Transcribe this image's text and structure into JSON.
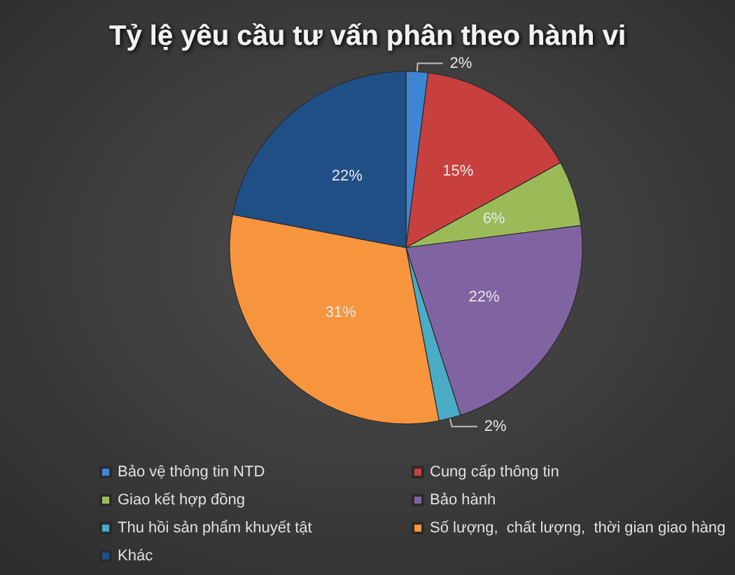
{
  "chart_data": {
    "type": "pie",
    "title": "Tỷ lệ yêu cầu tư vấn phân theo hành vi",
    "categories": [
      "Bảo vệ thông tin NTD",
      "Cung cấp thông tin",
      "Giao kết hợp đồng",
      "Bảo hành",
      "Thu hồi sản phẩm khuyết tật",
      "Số lượng,  chất lượng,  thời gian giao hàng",
      "Khác"
    ],
    "values": [
      2,
      15,
      6,
      22,
      2,
      31,
      22
    ],
    "colors": [
      "#3d86d4",
      "#c8403d",
      "#9bbb59",
      "#8064a2",
      "#4bacc6",
      "#f7953f",
      "#204f86"
    ],
    "value_labels": [
      "2%",
      "15%",
      "6%",
      "22%",
      "2%",
      "31%",
      "22%"
    ],
    "legend": "bottom"
  }
}
